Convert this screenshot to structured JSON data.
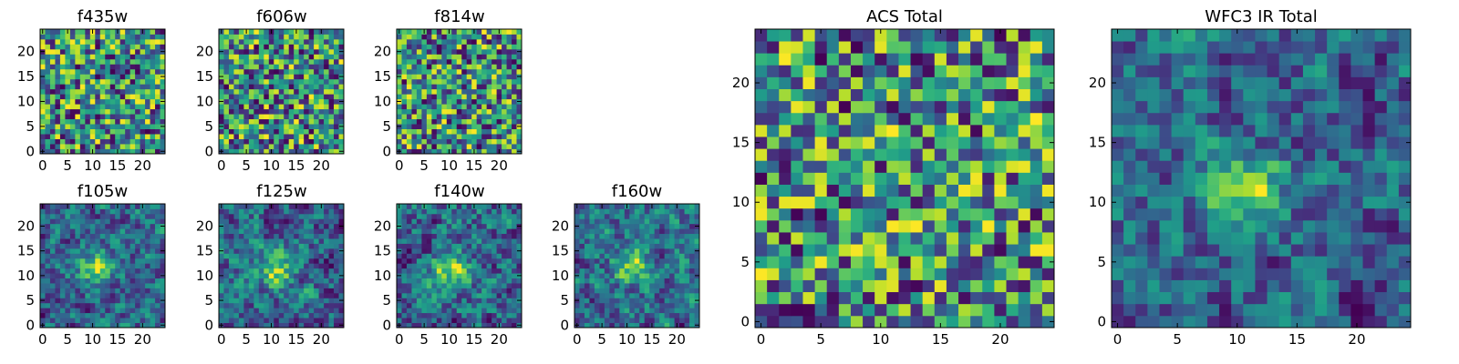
{
  "chart_data": [
    {
      "type": "heatmap",
      "title": "f435w",
      "size": 25,
      "seed": 11,
      "smooth": 0,
      "xticks": [
        "0",
        "5",
        "10",
        "15",
        "20"
      ],
      "yticks": [
        "0",
        "5",
        "10",
        "15",
        "20"
      ],
      "xtick_values": [
        0,
        5,
        10,
        15,
        20
      ],
      "ytick_values": [
        0,
        5,
        10,
        15,
        20
      ],
      "xlim": [
        -0.5,
        24.5
      ],
      "ylim": [
        -0.5,
        24.5
      ],
      "colormap": "viridis"
    },
    {
      "type": "heatmap",
      "title": "f606w",
      "size": 25,
      "seed": 23,
      "smooth": 0,
      "xticks": [
        "0",
        "5",
        "10",
        "15",
        "20"
      ],
      "yticks": [
        "0",
        "5",
        "10",
        "15",
        "20"
      ],
      "xtick_values": [
        0,
        5,
        10,
        15,
        20
      ],
      "ytick_values": [
        0,
        5,
        10,
        15,
        20
      ],
      "xlim": [
        -0.5,
        24.5
      ],
      "ylim": [
        -0.5,
        24.5
      ],
      "colormap": "viridis"
    },
    {
      "type": "heatmap",
      "title": "f814w",
      "size": 25,
      "seed": 37,
      "smooth": 0,
      "xticks": [
        "0",
        "5",
        "10",
        "15",
        "20"
      ],
      "yticks": [
        "0",
        "5",
        "10",
        "15",
        "20"
      ],
      "xtick_values": [
        0,
        5,
        10,
        15,
        20
      ],
      "ytick_values": [
        0,
        5,
        10,
        15,
        20
      ],
      "xlim": [
        -0.5,
        24.5
      ],
      "ylim": [
        -0.5,
        24.5
      ],
      "colormap": "viridis"
    },
    {
      "type": "heatmap",
      "title": "f105w",
      "size": 25,
      "seed": 41,
      "smooth": 1,
      "source": {
        "x": 11,
        "y": 12,
        "amp": 0.55,
        "sigma": 2.5
      },
      "xticks": [
        "0",
        "5",
        "10",
        "15",
        "20"
      ],
      "yticks": [
        "0",
        "5",
        "10",
        "15",
        "20"
      ],
      "xtick_values": [
        0,
        5,
        10,
        15,
        20
      ],
      "ytick_values": [
        0,
        5,
        10,
        15,
        20
      ],
      "xlim": [
        -0.5,
        24.5
      ],
      "ylim": [
        -0.5,
        24.5
      ],
      "colormap": "viridis"
    },
    {
      "type": "heatmap",
      "title": "f125w",
      "size": 25,
      "seed": 53,
      "smooth": 1,
      "source": {
        "x": 11,
        "y": 11,
        "amp": 0.5,
        "sigma": 2.5
      },
      "xticks": [
        "0",
        "5",
        "10",
        "15",
        "20"
      ],
      "yticks": [
        "0",
        "5",
        "10",
        "15",
        "20"
      ],
      "xtick_values": [
        0,
        5,
        10,
        15,
        20
      ],
      "ytick_values": [
        0,
        5,
        10,
        15,
        20
      ],
      "xlim": [
        -0.5,
        24.5
      ],
      "ylim": [
        -0.5,
        24.5
      ],
      "colormap": "viridis"
    },
    {
      "type": "heatmap",
      "title": "f140w",
      "size": 25,
      "seed": 67,
      "smooth": 1,
      "source": {
        "x": 10,
        "y": 11,
        "amp": 0.55,
        "sigma": 2.5
      },
      "xticks": [
        "0",
        "5",
        "10",
        "15",
        "20"
      ],
      "yticks": [
        "0",
        "5",
        "10",
        "15",
        "20"
      ],
      "xtick_values": [
        0,
        5,
        10,
        15,
        20
      ],
      "ytick_values": [
        0,
        5,
        10,
        15,
        20
      ],
      "xlim": [
        -0.5,
        24.5
      ],
      "ylim": [
        -0.5,
        24.5
      ],
      "colormap": "viridis"
    },
    {
      "type": "heatmap",
      "title": "f160w",
      "size": 25,
      "seed": 79,
      "smooth": 1,
      "source": {
        "x": 11,
        "y": 12,
        "amp": 0.5,
        "sigma": 2.5
      },
      "xticks": [
        "0",
        "5",
        "10",
        "15",
        "20"
      ],
      "yticks": [
        "0",
        "5",
        "10",
        "15",
        "20"
      ],
      "xtick_values": [
        0,
        5,
        10,
        15,
        20
      ],
      "ytick_values": [
        0,
        5,
        10,
        15,
        20
      ],
      "xlim": [
        -0.5,
        24.5
      ],
      "ylim": [
        -0.5,
        24.5
      ],
      "colormap": "viridis"
    },
    {
      "type": "heatmap",
      "title": "ACS Total",
      "size": 25,
      "seed": 97,
      "smooth": 0,
      "xticks": [
        "0",
        "5",
        "10",
        "15",
        "20"
      ],
      "yticks": [
        "0",
        "5",
        "10",
        "15",
        "20"
      ],
      "xtick_values": [
        0,
        5,
        10,
        15,
        20
      ],
      "ytick_values": [
        0,
        5,
        10,
        15,
        20
      ],
      "xlim": [
        -0.5,
        24.5
      ],
      "ylim": [
        -0.5,
        24.5
      ],
      "colormap": "viridis"
    },
    {
      "type": "heatmap",
      "title": "WFC3 IR Total",
      "size": 25,
      "seed": 131,
      "smooth": 1,
      "source": {
        "x": 11,
        "y": 11,
        "amp": 0.6,
        "sigma": 2.2
      },
      "xticks": [
        "0",
        "5",
        "10",
        "15",
        "20"
      ],
      "yticks": [
        "0",
        "5",
        "10",
        "15",
        "20"
      ],
      "xtick_values": [
        0,
        5,
        10,
        15,
        20
      ],
      "ytick_values": [
        0,
        5,
        10,
        15,
        20
      ],
      "xlim": [
        -0.5,
        24.5
      ],
      "ylim": [
        -0.5,
        24.5
      ],
      "colormap": "viridis"
    }
  ]
}
